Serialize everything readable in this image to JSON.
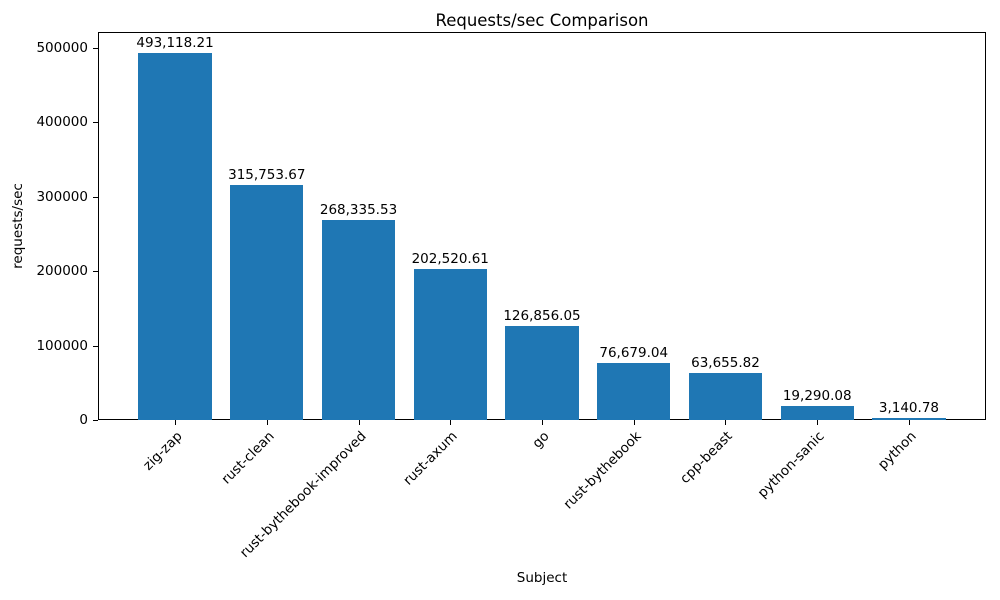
{
  "chart_data": {
    "type": "bar",
    "title": "Requests/sec Comparison",
    "xlabel": "Subject",
    "ylabel": "requests/sec",
    "categories": [
      "zig-zap",
      "rust-clean",
      "rust-bythebook-improved",
      "rust-axum",
      "go",
      "rust-bythebook",
      "cpp-beast",
      "python-sanic",
      "python"
    ],
    "values": [
      493118.21,
      315753.67,
      268335.53,
      202520.61,
      126856.05,
      76679.04,
      63655.82,
      19290.08,
      3140.78
    ],
    "value_labels": [
      "493,118.21",
      "315,753.67",
      "268,335.53",
      "202,520.61",
      "126,856.05",
      "76,679.04",
      "63,655.82",
      "19,290.08",
      "3,140.78"
    ],
    "yticks": [
      {
        "value": 0,
        "label": "0"
      },
      {
        "value": 100000,
        "label": "100000"
      },
      {
        "value": 200000,
        "label": "200000"
      },
      {
        "value": 300000,
        "label": "300000"
      },
      {
        "value": 400000,
        "label": "400000"
      },
      {
        "value": 500000,
        "label": "500000"
      }
    ],
    "ylim": [
      0,
      521500
    ],
    "bar_color": "#1f77b4",
    "grid": false,
    "legend": "none",
    "x_tick_rotation": 45
  }
}
